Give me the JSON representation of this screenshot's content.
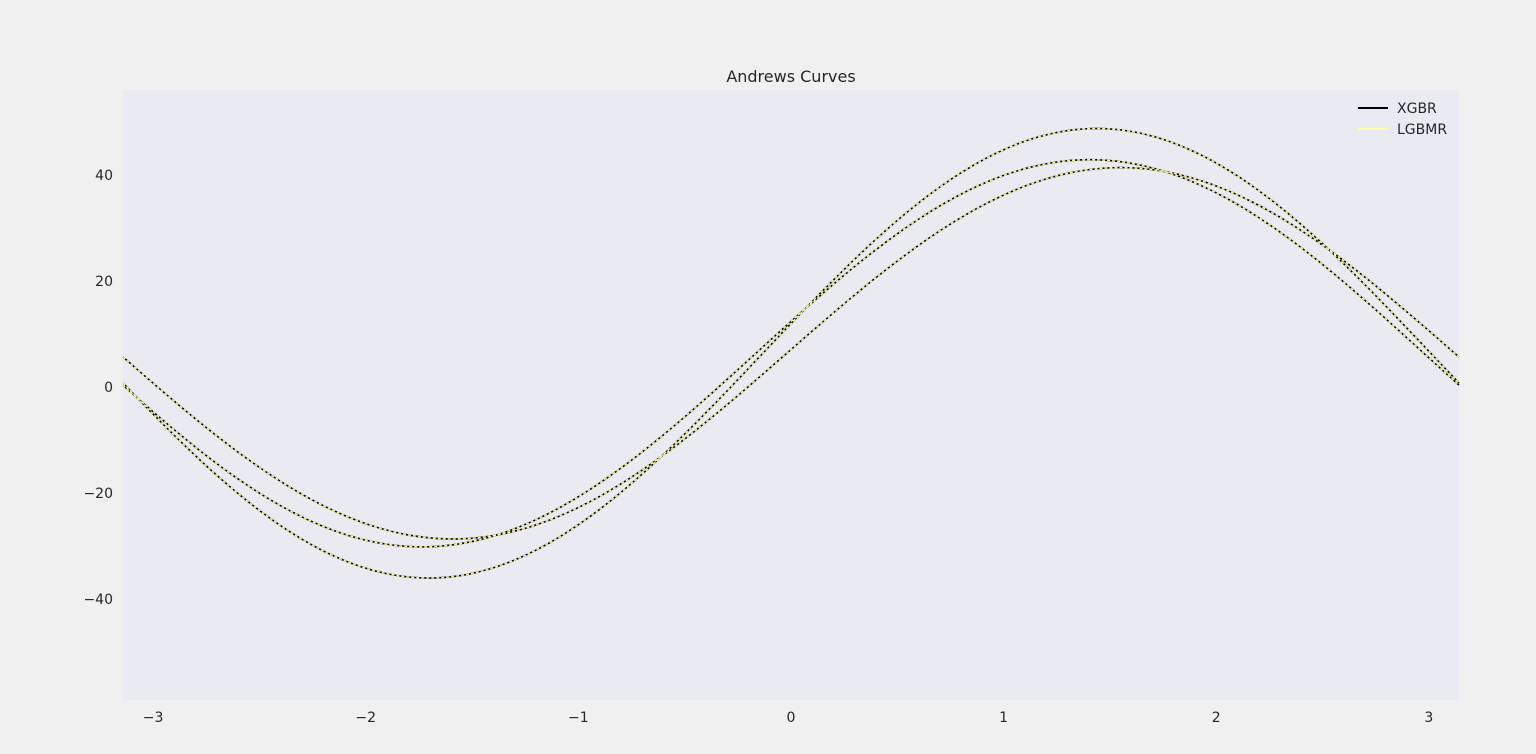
{
  "chart_data": {
    "type": "line",
    "title": "Andrews Curves",
    "xlabel": "",
    "ylabel": "",
    "xlim": [
      -3.14159,
      3.14159
    ],
    "ylim": [
      -59,
      56
    ],
    "x_ticks": [
      -3,
      -2,
      -1,
      0,
      1,
      2,
      3
    ],
    "x_tick_labels": [
      "−3",
      "−2",
      "−1",
      "0",
      "1",
      "2",
      "3"
    ],
    "y_ticks": [
      -40,
      -20,
      0,
      20,
      40
    ],
    "y_tick_labels": [
      "−40",
      "−20",
      "0",
      "20",
      "40"
    ],
    "grid": false,
    "legend": "top-right",
    "background": "#eaeaf2",
    "series": [
      {
        "name": "XGBR",
        "color": "#000000",
        "coeffs": [
          {
            "a": 9.0,
            "b": 42.0,
            "c": 5.6
          },
          {
            "a": 9.0,
            "b": 36.0,
            "c": 6.0
          },
          {
            "a": 9.0,
            "b": 35.0,
            "c": 0.7
          }
        ]
      },
      {
        "name": "LGBMR",
        "color": "#ffff99",
        "coeffs": [
          {
            "a": 9.0,
            "b": 42.0,
            "c": 5.6
          },
          {
            "a": 9.0,
            "b": 36.0,
            "c": 6.0
          },
          {
            "a": 9.0,
            "b": 35.0,
            "c": 0.7
          }
        ]
      }
    ],
    "formula": "y = a/√2 + b·sin(x) + c·cos(x)"
  }
}
